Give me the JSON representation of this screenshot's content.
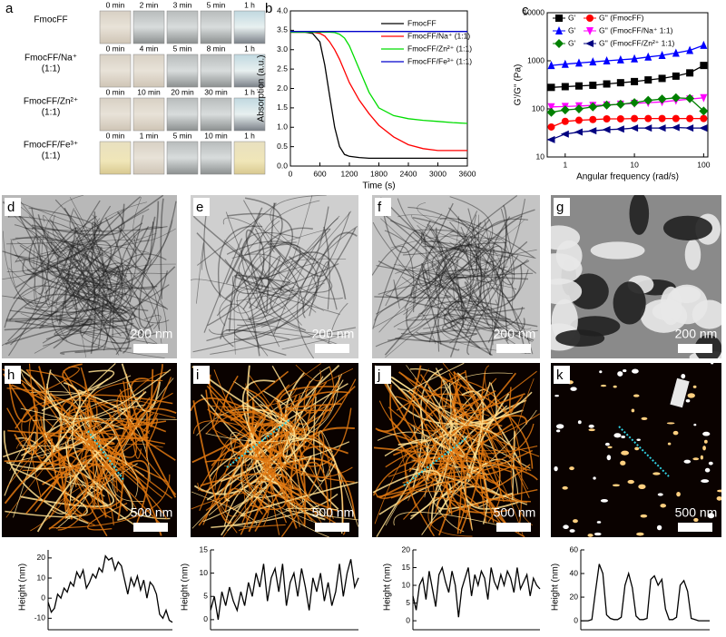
{
  "photos": {
    "label": "a",
    "rows": [
      {
        "name": [
          "FmocFF"
        ],
        "times": [
          "0 min",
          "2 min",
          "3 min",
          "5 min",
          "1 h"
        ]
      },
      {
        "name": [
          "FmocFF/Na⁺",
          "(1:1)"
        ],
        "times": [
          "0 min",
          "4 min",
          "5 min",
          "8 min",
          "1 h"
        ]
      },
      {
        "name": [
          "FmocFF/Zn²⁺",
          "(1:1)"
        ],
        "times": [
          "0 min",
          "10 min",
          "20 min",
          "30 min",
          "1 h"
        ]
      },
      {
        "name": [
          "FmocFF/Fe³⁺",
          "(1:1)"
        ],
        "times": [
          "0 min",
          "1 min",
          "5 min",
          "10 min",
          "1 h"
        ]
      }
    ]
  },
  "images": [
    {
      "label": "d",
      "scale": "200 nm"
    },
    {
      "label": "e",
      "scale": "200 nm"
    },
    {
      "label": "f",
      "scale": "200 nm"
    },
    {
      "label": "g",
      "scale": "200 nm"
    },
    {
      "label": "h",
      "scale": "500 nm"
    },
    {
      "label": "i",
      "scale": "500 nm"
    },
    {
      "label": "j",
      "scale": "500 nm"
    },
    {
      "label": "k",
      "scale": "500 nm"
    }
  ],
  "chart_data": [
    {
      "type": "line",
      "label": "b",
      "xlabel": "Time (s)",
      "ylabel": "Absorption (a.u.)",
      "x": [
        0,
        300,
        450,
        600,
        700,
        800,
        900,
        1000,
        1100,
        1200,
        1400,
        1600,
        1800,
        2100,
        2400,
        2700,
        3000,
        3300,
        3600
      ],
      "xlim": [
        0,
        3600
      ],
      "xticks": [
        0,
        600,
        1200,
        1800,
        2400,
        3000,
        3600
      ],
      "ylim": [
        0,
        4
      ],
      "yticks": [
        {
          "value": 0,
          "label": "0.0"
        },
        0.5,
        {
          "value": 1,
          "label": "1.0"
        },
        1.5,
        {
          "value": 2,
          "label": "2.0"
        },
        2.5,
        {
          "value": 3,
          "label": "3.0"
        },
        3.5,
        {
          "value": 4,
          "label": "4.0"
        }
      ],
      "legend": "upper right",
      "series": [
        {
          "name": "FmocFF",
          "color": "#000000",
          "values": [
            3.45,
            3.45,
            3.42,
            3.2,
            2.6,
            1.8,
            1.0,
            0.5,
            0.3,
            0.25,
            0.22,
            0.2,
            0.2,
            0.2,
            0.2,
            0.2,
            0.2,
            0.2,
            0.2
          ]
        },
        {
          "name": "FmocFF/Na⁺ (1:1)",
          "color": "#ff0000",
          "values": [
            3.45,
            3.45,
            3.45,
            3.42,
            3.35,
            3.2,
            3.0,
            2.75,
            2.45,
            2.15,
            1.7,
            1.35,
            1.05,
            0.75,
            0.55,
            0.45,
            0.4,
            0.4,
            0.4
          ]
        },
        {
          "name": "FmocFF/Zn²⁺ (1:1)",
          "color": "#00dd00",
          "values": [
            3.45,
            3.45,
            3.45,
            3.45,
            3.45,
            3.45,
            3.44,
            3.4,
            3.3,
            3.1,
            2.5,
            1.9,
            1.5,
            1.3,
            1.22,
            1.18,
            1.15,
            1.12,
            1.1
          ]
        },
        {
          "name": "FmocFF/Fe³⁺ (1:1)",
          "color": "#0000cc",
          "values": [
            3.47,
            3.47,
            3.47,
            3.47,
            3.47,
            3.47,
            3.47,
            3.47,
            3.47,
            3.47,
            3.47,
            3.47,
            3.47,
            3.47,
            3.47,
            3.47,
            3.47,
            3.47,
            3.47
          ]
        }
      ]
    },
    {
      "type": "scatter-line",
      "label": "c",
      "xlabel": "Angular frequency (rad/s)",
      "ylabel": "G'/G'' (Pa)",
      "xlog": true,
      "ylog": true,
      "x": [
        0.63,
        1,
        1.58,
        2.51,
        3.98,
        6.31,
        10,
        15.8,
        25.1,
        39.8,
        63.1,
        100
      ],
      "xlim": [
        0.55,
        115
      ],
      "xticks": [
        1,
        10,
        100
      ],
      "ylim": [
        10,
        10000
      ],
      "yticks": [
        10,
        100,
        1000,
        10000
      ],
      "legend": "upper left",
      "series": [
        {
          "name": "G'",
          "color": "#000000",
          "marker": "square",
          "values": [
            280,
            290,
            300,
            310,
            330,
            350,
            370,
            400,
            430,
            480,
            560,
            800
          ]
        },
        {
          "name": "G'' (FmocFF)",
          "color": "#ff0000",
          "marker": "circle",
          "values": [
            42,
            55,
            58,
            60,
            62,
            62,
            63,
            63,
            63,
            63,
            63,
            63
          ]
        },
        {
          "name": "G'",
          "color": "#0000ff",
          "marker": "triangle-up",
          "values": [
            800,
            850,
            900,
            950,
            1000,
            1050,
            1100,
            1200,
            1300,
            1450,
            1650,
            2100
          ]
        },
        {
          "name": "G'' (FmocFF/Na⁺ 1:1)",
          "color": "#ff00ff",
          "marker": "triangle-down",
          "values": [
            110,
            112,
            115,
            118,
            120,
            125,
            130,
            135,
            140,
            150,
            160,
            170
          ]
        },
        {
          "name": "G'",
          "color": "#008000",
          "marker": "diamond",
          "values": [
            85,
            95,
            100,
            110,
            120,
            125,
            135,
            150,
            160,
            170,
            165,
            90
          ]
        },
        {
          "name": "G'' (FmocFF/Zn²⁺ 1:1)",
          "color": "#000080",
          "marker": "triangle-left",
          "values": [
            23,
            30,
            33,
            35,
            37,
            38,
            40,
            40,
            40,
            41,
            40,
            40
          ]
        }
      ]
    },
    {
      "type": "profile",
      "ylabel": "Height (nm)",
      "ylim": [
        -13,
        24
      ],
      "yticks": [
        -10,
        0,
        10,
        20
      ],
      "values": [
        -2,
        -7,
        -5,
        2,
        0,
        5,
        3,
        8,
        6,
        13,
        10,
        14,
        5,
        8,
        12,
        10,
        15,
        13,
        21,
        19,
        20,
        14,
        18,
        16,
        9,
        2,
        10,
        6,
        11,
        4,
        9,
        0,
        8,
        6,
        2,
        -8,
        -10,
        -6,
        -11,
        -12
      ]
    },
    {
      "type": "profile",
      "ylabel": "Height (nm)",
      "ylim": [
        -1,
        15
      ],
      "yticks": [
        0,
        5,
        10,
        15
      ],
      "values": [
        2,
        5,
        0,
        6,
        3,
        7,
        4,
        2,
        6,
        3,
        8,
        5,
        10,
        7,
        12,
        4,
        9,
        11,
        6,
        12,
        3,
        8,
        10,
        5,
        11,
        7,
        2,
        9,
        6,
        10,
        4,
        8,
        3,
        6,
        12,
        5,
        10,
        13,
        7,
        9
      ]
    },
    {
      "type": "profile",
      "ylabel": "Height (nm)",
      "ylim": [
        -1,
        20
      ],
      "yticks": [
        0,
        5,
        10,
        15,
        20
      ],
      "values": [
        7,
        3,
        10,
        12,
        6,
        14,
        9,
        4,
        13,
        15,
        11,
        8,
        14,
        10,
        1,
        9,
        12,
        15,
        7,
        13,
        10,
        14,
        12,
        6,
        15,
        11,
        9,
        13,
        10,
        14,
        12,
        8,
        15,
        9,
        11,
        13,
        7,
        12,
        10,
        9
      ]
    },
    {
      "type": "profile",
      "ylabel": "Height (nm)",
      "ylim": [
        -3,
        60
      ],
      "yticks": [
        0,
        20,
        40,
        60
      ],
      "values": [
        0,
        0,
        0,
        1,
        25,
        48,
        40,
        5,
        2,
        1,
        1,
        3,
        30,
        40,
        28,
        4,
        1,
        1,
        2,
        35,
        38,
        30,
        35,
        10,
        1,
        1,
        3,
        30,
        34,
        25,
        2,
        1,
        0,
        0,
        0,
        0
      ]
    }
  ]
}
